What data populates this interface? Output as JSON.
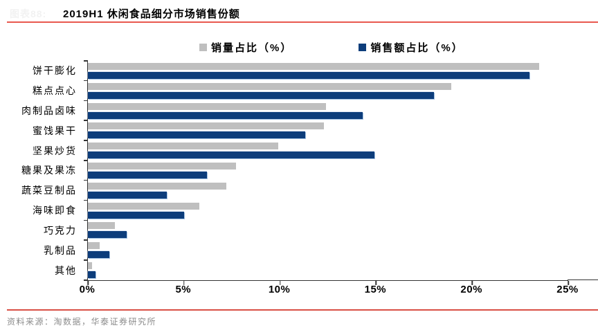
{
  "header": {
    "figure_label": "图表88:",
    "title": "2019H1 休闲食品细分市场销售份额"
  },
  "legend": [
    {
      "label": "销量占比（%）",
      "color": "#bfbfbf"
    },
    {
      "label": "销售额占比（%）",
      "color": "#0d3d7b"
    }
  ],
  "chart_data": {
    "type": "bar",
    "orientation": "horizontal",
    "title": "2019H1 休闲食品细分市场销售份额",
    "categories": [
      "饼干膨化",
      "糕点点心",
      "肉制品卤味",
      "蜜饯果干",
      "坚果炒货",
      "糖果及果冻",
      "蔬菜豆制品",
      "海味即食",
      "巧克力",
      "乳制品",
      "其他"
    ],
    "series": [
      {
        "name": "销量占比（%）",
        "color": "#bfbfbf",
        "values": [
          23.5,
          18.9,
          12.4,
          12.3,
          9.9,
          7.7,
          7.2,
          5.8,
          1.4,
          0.6,
          0.2
        ]
      },
      {
        "name": "销售额占比（%）",
        "color": "#0d3d7b",
        "values": [
          23.0,
          18.0,
          14.3,
          11.3,
          14.9,
          6.2,
          4.1,
          5.0,
          2.0,
          1.1,
          0.4
        ]
      }
    ],
    "x_axis": {
      "min": 0,
      "max": 25,
      "ticks": [
        "0%",
        "5%",
        "10%",
        "15%",
        "20%",
        "25%"
      ]
    },
    "grid": false,
    "legend_position": "top"
  },
  "footer": {
    "source": "资料来源：淘数据，华泰证券研究所"
  }
}
